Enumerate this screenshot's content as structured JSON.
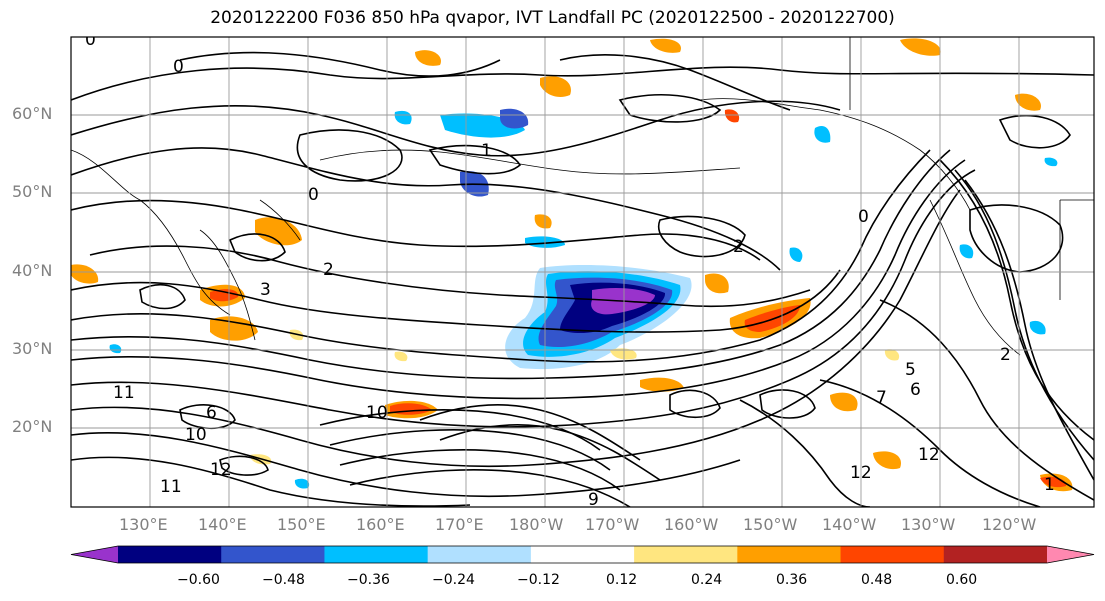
{
  "title": "2020122200 F036 850 hPa qvapor, IVT Landfall PC (2020122500 - 2020122700)",
  "lat_labels": [
    "60°N",
    "50°N",
    "40°N",
    "30°N",
    "20°N"
  ],
  "lon_labels": [
    "130°E",
    "140°E",
    "150°E",
    "160°E",
    "170°E",
    "180°W",
    "170°W",
    "160°W",
    "150°W",
    "140°W",
    "130°W",
    "120°W"
  ],
  "contour_labels": [
    "0",
    "0",
    "1",
    "0",
    "2",
    "2",
    "3",
    "0",
    "2",
    "5",
    "6",
    "6",
    "7",
    "10",
    "11",
    "12",
    "12",
    "12",
    "11",
    "9",
    "10",
    "1"
  ],
  "colorbar": {
    "ticks": [
      "−0.60",
      "−0.48",
      "−0.36",
      "−0.24",
      "−0.12",
      "0.12",
      "0.24",
      "0.36",
      "0.48",
      "0.60"
    ],
    "colors": [
      "#9933cc",
      "#000080",
      "#3355cc",
      "#00bfff",
      "#b0e0ff",
      "#ffffff",
      "#ffe680",
      "#ff9f00",
      "#ff4500",
      "#b22222",
      "#ff88b0"
    ]
  }
}
